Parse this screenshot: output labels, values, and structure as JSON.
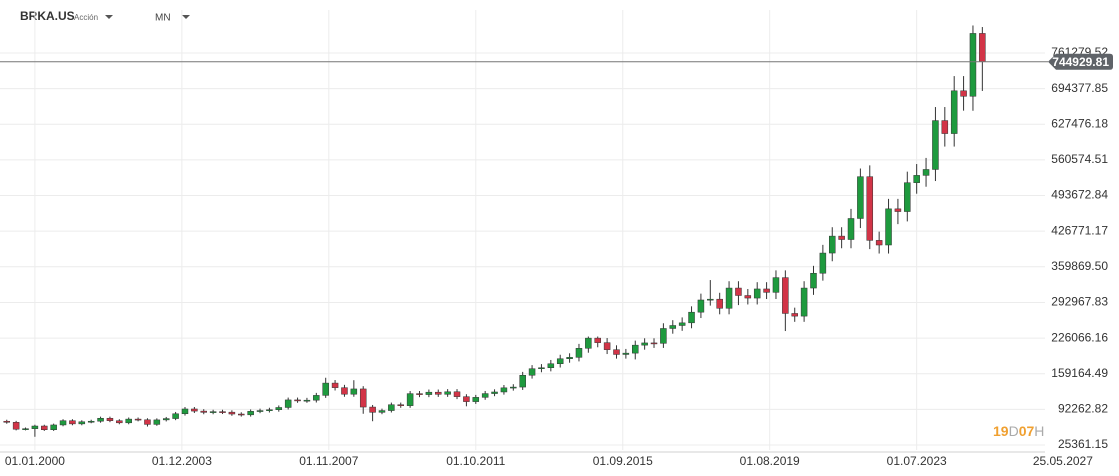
{
  "chart_data": {
    "type": "candlestick",
    "symbol": "BRKA.US",
    "instrument_type": "Acción",
    "timeframe": "MN",
    "countdown": {
      "days": "19",
      "days_unit": "D",
      "hours": "07",
      "hours_unit": "H"
    },
    "colors": {
      "up": "#1e9a3e",
      "down": "#d23447",
      "countdown": "#f0a030",
      "price_tag": "#5f6368"
    },
    "grid": true,
    "current_price": 744929.81,
    "xlim": [
      1999.07,
      2026.92
    ],
    "xticks": [
      {
        "value": 2000.0,
        "label": "01.01.2000"
      },
      {
        "value": 2003.917,
        "label": "01.12.2003"
      },
      {
        "value": 2007.833,
        "label": "01.11.2007"
      },
      {
        "value": 2011.75,
        "label": "01.10.2011"
      },
      {
        "value": 2015.667,
        "label": "01.09.2015"
      },
      {
        "value": 2019.583,
        "label": "01.08.2019"
      },
      {
        "value": 2023.5,
        "label": "01.07.2023"
      },
      {
        "value": 2027.396,
        "label": "25.05.2027"
      }
    ],
    "ylim": [
      15975,
      804420
    ],
    "yticks": [
      25361.15,
      92262.82,
      159164.49,
      226066.16,
      292967.83,
      {
        "value": 359869.5,
        "label": "359869.50"
      },
      426771.17,
      493672.84,
      560574.51,
      627476.18,
      694377.85,
      761279.52
    ],
    "x": [
      1999.25,
      1999.5,
      1999.75,
      2000,
      2000.25,
      2000.5,
      2000.75,
      2001,
      2001.25,
      2001.5,
      2001.75,
      2002,
      2002.25,
      2002.5,
      2002.75,
      2003,
      2003.25,
      2003.5,
      2003.75,
      2004,
      2004.25,
      2004.5,
      2004.75,
      2005,
      2005.25,
      2005.5,
      2005.75,
      2006,
      2006.25,
      2006.5,
      2006.75,
      2007,
      2007.25,
      2007.5,
      2007.75,
      2008,
      2008.25,
      2008.5,
      2008.75,
      2009,
      2009.25,
      2009.5,
      2009.75,
      2010,
      2010.25,
      2010.5,
      2010.75,
      2011,
      2011.25,
      2011.5,
      2011.75,
      2012,
      2012.25,
      2012.5,
      2012.75,
      2013,
      2013.25,
      2013.5,
      2013.75,
      2014,
      2014.25,
      2014.5,
      2014.75,
      2015,
      2015.25,
      2015.5,
      2015.75,
      2016,
      2016.25,
      2016.5,
      2016.75,
      2017,
      2017.25,
      2017.5,
      2017.75,
      2018,
      2018.25,
      2018.5,
      2018.75,
      2019,
      2019.25,
      2019.5,
      2019.75,
      2020,
      2020.25,
      2020.5,
      2020.75,
      2021,
      2021.25,
      2021.5,
      2021.75,
      2022,
      2022.25,
      2022.5,
      2022.75,
      2023,
      2023.25,
      2023.5,
      2023.75,
      2024,
      2024.25,
      2024.5,
      2024.75,
      2025,
      2025.25
    ],
    "open": [
      70000,
      68000,
      55000,
      56000,
      61000,
      54000,
      63000,
      71000,
      65000,
      69000,
      70000,
      75600,
      71000,
      67000,
      74000,
      72700,
      64000,
      72500,
      75000,
      84000,
      93000,
      89000,
      86600,
      88000,
      87000,
      83500,
      82000,
      88600,
      90000,
      91600,
      95800,
      110000,
      109000,
      109500,
      118500,
      141600,
      133000,
      120700,
      130600,
      96600,
      86700,
      90000,
      101000,
      99200,
      121800,
      120000,
      124500,
      120500,
      125300,
      116100,
      106800,
      114800,
      121900,
      124900,
      132700,
      134100,
      156300,
      168600,
      170400,
      177900,
      187300,
      189900,
      206900,
      226000,
      217500,
      204300,
      195300,
      197800,
      212800,
      217000,
      216200,
      244100,
      249700,
      254700,
      274700,
      297600,
      299100,
      282000,
      320000,
      306000,
      301200,
      318300,
      311900,
      339600,
      272300,
      267300,
      320000,
      347800,
      385700,
      417500,
      411100,
      450600,
      529100,
      409500,
      400800,
      468700,
      463600,
      517800,
      531500,
      542600,
      634400,
      610000,
      690300,
      680000,
      798000
    ],
    "high": [
      72800,
      70700,
      58200,
      63400,
      63400,
      65500,
      73800,
      73800,
      71800,
      72800,
      78600,
      78600,
      73800,
      77000,
      77000,
      75600,
      75400,
      78000,
      87400,
      96700,
      96700,
      92600,
      91500,
      91500,
      90500,
      86800,
      92100,
      93600,
      95300,
      99600,
      114400,
      114400,
      113900,
      123200,
      151600,
      147300,
      138300,
      147000,
      135800,
      100500,
      93600,
      105000,
      105000,
      126700,
      126700,
      129500,
      129500,
      130300,
      130300,
      120700,
      119400,
      126800,
      129900,
      138000,
      139500,
      162600,
      175300,
      177200,
      185000,
      194800,
      197500,
      215200,
      229000,
      229000,
      226200,
      212500,
      205700,
      221300,
      225700,
      225700,
      253900,
      259700,
      264900,
      285700,
      309500,
      335000,
      311100,
      332800,
      332800,
      318200,
      331000,
      331000,
      353200,
      353200,
      283200,
      332800,
      361700,
      401100,
      434200,
      434200,
      468600,
      544400,
      550300,
      425900,
      487400,
      487400,
      538500,
      552800,
      564300,
      659800,
      659800,
      717900,
      717900,
      812900,
      810000
    ],
    "low": [
      65300,
      52800,
      52800,
      40800,
      51800,
      51800,
      60500,
      62400,
      62400,
      66200,
      67200,
      68200,
      64300,
      64300,
      69800,
      60000,
      61400,
      69600,
      72000,
      80600,
      85400,
      83100,
      83100,
      83500,
      80200,
      78700,
      78700,
      85100,
      86400,
      87900,
      92000,
      104600,
      104600,
      105100,
      113800,
      127700,
      115900,
      115900,
      84000,
      70000,
      83200,
      86400,
      95200,
      95200,
      115200,
      115200,
      115700,
      115700,
      111500,
      98000,
      102500,
      110200,
      117000,
      119900,
      127400,
      128700,
      150000,
      161900,
      163600,
      170800,
      179800,
      182300,
      198600,
      208800,
      196100,
      187500,
      187500,
      186000,
      204300,
      207600,
      207600,
      234300,
      239700,
      244500,
      263700,
      287000,
      270700,
      270700,
      288000,
      289200,
      289200,
      299400,
      299400,
      239300,
      256600,
      256600,
      307200,
      333900,
      370300,
      394700,
      394700,
      432600,
      393100,
      384800,
      384800,
      440000,
      445100,
      497100,
      510200,
      520900,
      585600,
      585600,
      653000,
      652800,
      690000
    ],
    "close": [
      68000,
      55000,
      56000,
      61000,
      54000,
      63000,
      71000,
      65000,
      69000,
      70000,
      75600,
      71000,
      67000,
      74000,
      72700,
      64000,
      72500,
      75000,
      84000,
      93000,
      89000,
      86600,
      88000,
      87000,
      83500,
      82000,
      88600,
      90000,
      91600,
      95800,
      110000,
      109000,
      109500,
      118500,
      141600,
      133000,
      120700,
      130600,
      96600,
      86700,
      90000,
      101000,
      99200,
      121800,
      120000,
      124500,
      120500,
      125300,
      116100,
      106800,
      114800,
      121900,
      124900,
      132700,
      134100,
      156300,
      168600,
      170400,
      177900,
      187300,
      189900,
      206900,
      226000,
      217500,
      204300,
      195300,
      197800,
      212800,
      217000,
      216200,
      244100,
      249700,
      254700,
      274700,
      297600,
      299100,
      282000,
      320000,
      306000,
      301200,
      318300,
      311900,
      339600,
      272300,
      267300,
      320000,
      347800,
      385700,
      417500,
      411100,
      450600,
      529100,
      409500,
      400800,
      468700,
      463600,
      517800,
      531500,
      542600,
      634400,
      610000,
      690300,
      680000,
      798000,
      744929.81
    ]
  }
}
